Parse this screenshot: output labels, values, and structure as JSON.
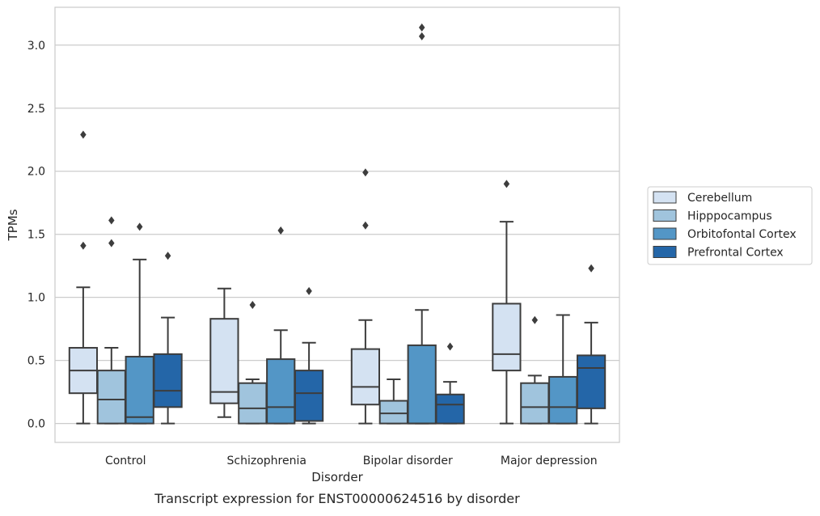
{
  "chart_data": {
    "type": "box",
    "title": "",
    "caption": "Transcript expression for ENST00000624516 by disorder",
    "xlabel": "Disorder",
    "ylabel": "TPMs",
    "ylim": [
      -0.15,
      3.3
    ],
    "yticks": [
      "0.0",
      "0.5",
      "1.0",
      "1.5",
      "2.0",
      "2.5",
      "3.0"
    ],
    "grid": "horizontal",
    "legend_position": "right",
    "categories": [
      "Control",
      "Schizophrenia",
      "Bipolar disorder",
      "Major depression"
    ],
    "series": [
      {
        "name": "Cerebellum",
        "color": "#d4e2f2",
        "boxes": [
          {
            "whisker_low": 0.0,
            "q1": 0.24,
            "median": 0.42,
            "q3": 0.6,
            "whisker_high": 1.08,
            "outliers": [
              1.41,
              2.29
            ]
          },
          {
            "whisker_low": 0.05,
            "q1": 0.16,
            "median": 0.25,
            "q3": 0.83,
            "whisker_high": 1.07,
            "outliers": []
          },
          {
            "whisker_low": 0.0,
            "q1": 0.15,
            "median": 0.29,
            "q3": 0.59,
            "whisker_high": 0.82,
            "outliers": [
              1.57,
              1.99
            ]
          },
          {
            "whisker_low": 0.0,
            "q1": 0.42,
            "median": 0.55,
            "q3": 0.95,
            "whisker_high": 1.6,
            "outliers": [
              1.9
            ]
          }
        ]
      },
      {
        "name": "Hipppocampus",
        "color": "#a0c4dd",
        "boxes": [
          {
            "whisker_low": 0.0,
            "q1": 0.0,
            "median": 0.19,
            "q3": 0.42,
            "whisker_high": 0.6,
            "outliers": [
              1.43,
              1.61
            ]
          },
          {
            "whisker_low": 0.0,
            "q1": 0.0,
            "median": 0.12,
            "q3": 0.32,
            "whisker_high": 0.35,
            "outliers": [
              0.94
            ]
          },
          {
            "whisker_low": 0.0,
            "q1": 0.0,
            "median": 0.08,
            "q3": 0.18,
            "whisker_high": 0.35,
            "outliers": []
          },
          {
            "whisker_low": 0.0,
            "q1": 0.0,
            "median": 0.13,
            "q3": 0.32,
            "whisker_high": 0.38,
            "outliers": [
              0.82
            ]
          }
        ]
      },
      {
        "name": "Orbitofontal Cortex",
        "color": "#5396c6",
        "boxes": [
          {
            "whisker_low": 0.0,
            "q1": 0.0,
            "median": 0.05,
            "q3": 0.53,
            "whisker_high": 1.3,
            "outliers": [
              1.56
            ]
          },
          {
            "whisker_low": 0.0,
            "q1": 0.0,
            "median": 0.13,
            "q3": 0.51,
            "whisker_high": 0.74,
            "outliers": [
              1.53
            ]
          },
          {
            "whisker_low": 0.0,
            "q1": 0.0,
            "median": 0.0,
            "q3": 0.62,
            "whisker_high": 0.9,
            "outliers": [
              3.07,
              3.14
            ]
          },
          {
            "whisker_low": 0.0,
            "q1": 0.0,
            "median": 0.13,
            "q3": 0.37,
            "whisker_high": 0.86,
            "outliers": []
          }
        ]
      },
      {
        "name": "Prefrontal Cortex",
        "color": "#2466a8",
        "boxes": [
          {
            "whisker_low": 0.0,
            "q1": 0.13,
            "median": 0.26,
            "q3": 0.55,
            "whisker_high": 0.84,
            "outliers": [
              1.33
            ]
          },
          {
            "whisker_low": 0.0,
            "q1": 0.02,
            "median": 0.24,
            "q3": 0.42,
            "whisker_high": 0.64,
            "outliers": [
              1.05
            ]
          },
          {
            "whisker_low": 0.0,
            "q1": 0.0,
            "median": 0.15,
            "q3": 0.23,
            "whisker_high": 0.33,
            "outliers": [
              0.61
            ]
          },
          {
            "whisker_low": 0.0,
            "q1": 0.12,
            "median": 0.44,
            "q3": 0.54,
            "whisker_high": 0.8,
            "outliers": [
              1.23
            ]
          }
        ]
      }
    ]
  }
}
